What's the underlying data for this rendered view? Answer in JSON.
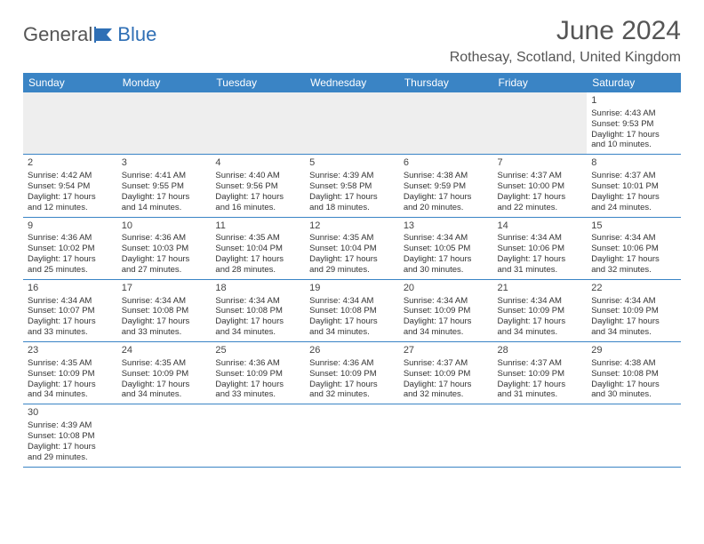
{
  "brand": {
    "part1": "General",
    "part2": "Blue"
  },
  "title": "June 2024",
  "location": "Rothesay, Scotland, United Kingdom",
  "colors": {
    "header_bg": "#3a84c5",
    "header_text": "#ffffff",
    "row_border": "#3a84c5",
    "blank_bg": "#eeeeee",
    "text": "#333333",
    "brand_blue": "#2f6fb5"
  },
  "daynames": [
    "Sunday",
    "Monday",
    "Tuesday",
    "Wednesday",
    "Thursday",
    "Friday",
    "Saturday"
  ],
  "weeks": [
    [
      null,
      null,
      null,
      null,
      null,
      null,
      {
        "n": "1",
        "sr": "Sunrise: 4:43 AM",
        "ss": "Sunset: 9:53 PM",
        "d1": "Daylight: 17 hours",
        "d2": "and 10 minutes."
      }
    ],
    [
      {
        "n": "2",
        "sr": "Sunrise: 4:42 AM",
        "ss": "Sunset: 9:54 PM",
        "d1": "Daylight: 17 hours",
        "d2": "and 12 minutes."
      },
      {
        "n": "3",
        "sr": "Sunrise: 4:41 AM",
        "ss": "Sunset: 9:55 PM",
        "d1": "Daylight: 17 hours",
        "d2": "and 14 minutes."
      },
      {
        "n": "4",
        "sr": "Sunrise: 4:40 AM",
        "ss": "Sunset: 9:56 PM",
        "d1": "Daylight: 17 hours",
        "d2": "and 16 minutes."
      },
      {
        "n": "5",
        "sr": "Sunrise: 4:39 AM",
        "ss": "Sunset: 9:58 PM",
        "d1": "Daylight: 17 hours",
        "d2": "and 18 minutes."
      },
      {
        "n": "6",
        "sr": "Sunrise: 4:38 AM",
        "ss": "Sunset: 9:59 PM",
        "d1": "Daylight: 17 hours",
        "d2": "and 20 minutes."
      },
      {
        "n": "7",
        "sr": "Sunrise: 4:37 AM",
        "ss": "Sunset: 10:00 PM",
        "d1": "Daylight: 17 hours",
        "d2": "and 22 minutes."
      },
      {
        "n": "8",
        "sr": "Sunrise: 4:37 AM",
        "ss": "Sunset: 10:01 PM",
        "d1": "Daylight: 17 hours",
        "d2": "and 24 minutes."
      }
    ],
    [
      {
        "n": "9",
        "sr": "Sunrise: 4:36 AM",
        "ss": "Sunset: 10:02 PM",
        "d1": "Daylight: 17 hours",
        "d2": "and 25 minutes."
      },
      {
        "n": "10",
        "sr": "Sunrise: 4:36 AM",
        "ss": "Sunset: 10:03 PM",
        "d1": "Daylight: 17 hours",
        "d2": "and 27 minutes."
      },
      {
        "n": "11",
        "sr": "Sunrise: 4:35 AM",
        "ss": "Sunset: 10:04 PM",
        "d1": "Daylight: 17 hours",
        "d2": "and 28 minutes."
      },
      {
        "n": "12",
        "sr": "Sunrise: 4:35 AM",
        "ss": "Sunset: 10:04 PM",
        "d1": "Daylight: 17 hours",
        "d2": "and 29 minutes."
      },
      {
        "n": "13",
        "sr": "Sunrise: 4:34 AM",
        "ss": "Sunset: 10:05 PM",
        "d1": "Daylight: 17 hours",
        "d2": "and 30 minutes."
      },
      {
        "n": "14",
        "sr": "Sunrise: 4:34 AM",
        "ss": "Sunset: 10:06 PM",
        "d1": "Daylight: 17 hours",
        "d2": "and 31 minutes."
      },
      {
        "n": "15",
        "sr": "Sunrise: 4:34 AM",
        "ss": "Sunset: 10:06 PM",
        "d1": "Daylight: 17 hours",
        "d2": "and 32 minutes."
      }
    ],
    [
      {
        "n": "16",
        "sr": "Sunrise: 4:34 AM",
        "ss": "Sunset: 10:07 PM",
        "d1": "Daylight: 17 hours",
        "d2": "and 33 minutes."
      },
      {
        "n": "17",
        "sr": "Sunrise: 4:34 AM",
        "ss": "Sunset: 10:08 PM",
        "d1": "Daylight: 17 hours",
        "d2": "and 33 minutes."
      },
      {
        "n": "18",
        "sr": "Sunrise: 4:34 AM",
        "ss": "Sunset: 10:08 PM",
        "d1": "Daylight: 17 hours",
        "d2": "and 34 minutes."
      },
      {
        "n": "19",
        "sr": "Sunrise: 4:34 AM",
        "ss": "Sunset: 10:08 PM",
        "d1": "Daylight: 17 hours",
        "d2": "and 34 minutes."
      },
      {
        "n": "20",
        "sr": "Sunrise: 4:34 AM",
        "ss": "Sunset: 10:09 PM",
        "d1": "Daylight: 17 hours",
        "d2": "and 34 minutes."
      },
      {
        "n": "21",
        "sr": "Sunrise: 4:34 AM",
        "ss": "Sunset: 10:09 PM",
        "d1": "Daylight: 17 hours",
        "d2": "and 34 minutes."
      },
      {
        "n": "22",
        "sr": "Sunrise: 4:34 AM",
        "ss": "Sunset: 10:09 PM",
        "d1": "Daylight: 17 hours",
        "d2": "and 34 minutes."
      }
    ],
    [
      {
        "n": "23",
        "sr": "Sunrise: 4:35 AM",
        "ss": "Sunset: 10:09 PM",
        "d1": "Daylight: 17 hours",
        "d2": "and 34 minutes."
      },
      {
        "n": "24",
        "sr": "Sunrise: 4:35 AM",
        "ss": "Sunset: 10:09 PM",
        "d1": "Daylight: 17 hours",
        "d2": "and 34 minutes."
      },
      {
        "n": "25",
        "sr": "Sunrise: 4:36 AM",
        "ss": "Sunset: 10:09 PM",
        "d1": "Daylight: 17 hours",
        "d2": "and 33 minutes."
      },
      {
        "n": "26",
        "sr": "Sunrise: 4:36 AM",
        "ss": "Sunset: 10:09 PM",
        "d1": "Daylight: 17 hours",
        "d2": "and 32 minutes."
      },
      {
        "n": "27",
        "sr": "Sunrise: 4:37 AM",
        "ss": "Sunset: 10:09 PM",
        "d1": "Daylight: 17 hours",
        "d2": "and 32 minutes."
      },
      {
        "n": "28",
        "sr": "Sunrise: 4:37 AM",
        "ss": "Sunset: 10:09 PM",
        "d1": "Daylight: 17 hours",
        "d2": "and 31 minutes."
      },
      {
        "n": "29",
        "sr": "Sunrise: 4:38 AM",
        "ss": "Sunset: 10:08 PM",
        "d1": "Daylight: 17 hours",
        "d2": "and 30 minutes."
      }
    ],
    [
      {
        "n": "30",
        "sr": "Sunrise: 4:39 AM",
        "ss": "Sunset: 10:08 PM",
        "d1": "Daylight: 17 hours",
        "d2": "and 29 minutes."
      },
      null,
      null,
      null,
      null,
      null,
      null
    ]
  ]
}
